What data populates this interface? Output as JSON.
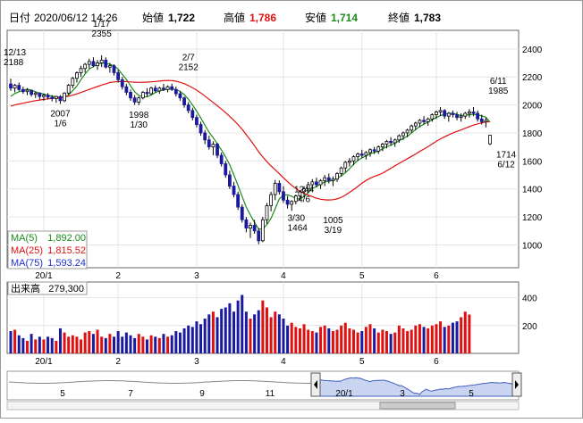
{
  "header": {
    "date_label": "日付",
    "date_value": "2020/06/12 14:26",
    "open_label": "始値",
    "open_value": "1,722",
    "high_label": "高値",
    "high_value": "1,786",
    "low_label": "安値",
    "low_value": "1,714",
    "close_label": "終値",
    "close_value": "1,783"
  },
  "colors": {
    "up": "#ffffff",
    "down": "#1a1aa0",
    "ma5": "#1a8c1a",
    "ma25": "#e01010",
    "ma75": "#2030d0",
    "vol_up": "#e01010",
    "vol_down": "#1a1aa0",
    "nav_fill": "#c8d4f0"
  },
  "chart_data": {
    "type": "candlestick",
    "price_axis": {
      "ylim": [
        850,
        2520
      ],
      "ticks": [
        1000,
        1200,
        1400,
        1600,
        1800,
        2000,
        2200,
        2400
      ]
    },
    "month_labels": [
      {
        "label": "20/1",
        "index": 8
      },
      {
        "label": "2",
        "index": 26
      },
      {
        "label": "3",
        "index": 45
      },
      {
        "label": "4",
        "index": 66
      },
      {
        "label": "5",
        "index": 85
      },
      {
        "label": "6",
        "index": 103
      }
    ],
    "key_points": [
      {
        "index": 0,
        "value": 2188
      },
      {
        "index": 22,
        "value": 2355
      },
      {
        "index": 43,
        "value": 2152
      },
      {
        "index": 12,
        "value": 2007
      },
      {
        "index": 31,
        "value": 1998
      },
      {
        "index": 67,
        "value": 1005
      },
      {
        "index": 71,
        "value": 1464
      },
      {
        "index": 78,
        "value": 1244
      },
      {
        "index": 118,
        "value": 1985
      },
      {
        "index": 121,
        "value": 1714
      }
    ],
    "annotations": [
      {
        "top": "12/13",
        "bottom": "2188"
      },
      {
        "top": "1/17",
        "bottom": "2355"
      },
      {
        "top": "2/7",
        "bottom": "2152"
      },
      {
        "top": "2007",
        "bottom": "1/6"
      },
      {
        "top": "1998",
        "bottom": "1/30"
      },
      {
        "top": "3/30",
        "bottom": "1464"
      },
      {
        "top": "1244",
        "bottom": "4/6"
      },
      {
        "top": "1005",
        "bottom": "3/19"
      },
      {
        "top": "6/11",
        "bottom": "1985"
      },
      {
        "top": "1714",
        "bottom": "6/12"
      }
    ],
    "ma_legend": [
      {
        "name": "MA(5)",
        "value": "1,892.00"
      },
      {
        "name": "MA(25)",
        "value": "1,815.52"
      },
      {
        "name": "MA(75)",
        "value": "1,593.24"
      }
    ],
    "volume": {
      "label": "出来高",
      "value": "279,300",
      "ylim": [
        0,
        500
      ],
      "ticks": [
        200,
        400
      ]
    },
    "navigator": {
      "labels": [
        "5",
        "7",
        "9",
        "11",
        "20/1",
        "3",
        "5"
      ]
    },
    "candles": [
      [
        2150,
        2188,
        2100,
        2120
      ],
      [
        2120,
        2150,
        2090,
        2140
      ],
      [
        2140,
        2160,
        2100,
        2110
      ],
      [
        2110,
        2130,
        2080,
        2095
      ],
      [
        2095,
        2120,
        2070,
        2105
      ],
      [
        2105,
        2110,
        2060,
        2075
      ],
      [
        2075,
        2095,
        2050,
        2085
      ],
      [
        2085,
        2090,
        2040,
        2060
      ],
      [
        2060,
        2080,
        2030,
        2070
      ],
      [
        2070,
        2085,
        2040,
        2055
      ],
      [
        2055,
        2070,
        2025,
        2045
      ],
      [
        2045,
        2065,
        2015,
        2060
      ],
      [
        2060,
        2070,
        2007,
        2030
      ],
      [
        2030,
        2090,
        2020,
        2085
      ],
      [
        2085,
        2150,
        2070,
        2140
      ],
      [
        2140,
        2200,
        2120,
        2190
      ],
      [
        2190,
        2240,
        2160,
        2230
      ],
      [
        2230,
        2280,
        2200,
        2260
      ],
      [
        2260,
        2300,
        2230,
        2290
      ],
      [
        2290,
        2330,
        2260,
        2310
      ],
      [
        2310,
        2340,
        2270,
        2280
      ],
      [
        2280,
        2320,
        2250,
        2300
      ],
      [
        2300,
        2355,
        2270,
        2320
      ],
      [
        2320,
        2340,
        2260,
        2270
      ],
      [
        2270,
        2300,
        2230,
        2280
      ],
      [
        2280,
        2290,
        2210,
        2230
      ],
      [
        2230,
        2250,
        2160,
        2180
      ],
      [
        2180,
        2200,
        2110,
        2130
      ],
      [
        2130,
        2150,
        2070,
        2090
      ],
      [
        2090,
        2110,
        2030,
        2050
      ],
      [
        2050,
        2070,
        2000,
        2020
      ],
      [
        2020,
        2060,
        1998,
        2050
      ],
      [
        2050,
        2100,
        2040,
        2090
      ],
      [
        2090,
        2120,
        2060,
        2080
      ],
      [
        2080,
        2130,
        2070,
        2120
      ],
      [
        2120,
        2140,
        2090,
        2100
      ],
      [
        2100,
        2130,
        2080,
        2120
      ],
      [
        2120,
        2150,
        2100,
        2110
      ],
      [
        2110,
        2140,
        2090,
        2130
      ],
      [
        2130,
        2152,
        2100,
        2110
      ],
      [
        2110,
        2130,
        2060,
        2080
      ],
      [
        2080,
        2100,
        2030,
        2050
      ],
      [
        2050,
        2060,
        1980,
        2000
      ],
      [
        2000,
        2020,
        1940,
        1960
      ],
      [
        1960,
        1980,
        1890,
        1910
      ],
      [
        1910,
        1930,
        1840,
        1860
      ],
      [
        1860,
        1880,
        1780,
        1800
      ],
      [
        1800,
        1820,
        1720,
        1750
      ],
      [
        1750,
        1780,
        1680,
        1700
      ],
      [
        1700,
        1740,
        1640,
        1720
      ],
      [
        1720,
        1730,
        1620,
        1640
      ],
      [
        1640,
        1660,
        1560,
        1580
      ],
      [
        1580,
        1600,
        1480,
        1500
      ],
      [
        1500,
        1530,
        1400,
        1420
      ],
      [
        1420,
        1450,
        1340,
        1360
      ],
      [
        1360,
        1380,
        1250,
        1270
      ],
      [
        1270,
        1290,
        1160,
        1180
      ],
      [
        1180,
        1200,
        1090,
        1120
      ],
      [
        1120,
        1160,
        1050,
        1140
      ],
      [
        1140,
        1180,
        1080,
        1100
      ],
      [
        1100,
        1120,
        1005,
        1030
      ],
      [
        1030,
        1200,
        1020,
        1180
      ],
      [
        1180,
        1300,
        1150,
        1280
      ],
      [
        1280,
        1380,
        1240,
        1360
      ],
      [
        1360,
        1464,
        1320,
        1440
      ],
      [
        1440,
        1460,
        1360,
        1380
      ],
      [
        1380,
        1420,
        1300,
        1320
      ],
      [
        1320,
        1350,
        1260,
        1290
      ],
      [
        1290,
        1320,
        1244,
        1310
      ],
      [
        1310,
        1360,
        1290,
        1350
      ],
      [
        1350,
        1390,
        1320,
        1380
      ],
      [
        1380,
        1420,
        1340,
        1400
      ],
      [
        1400,
        1450,
        1370,
        1430
      ],
      [
        1430,
        1470,
        1400,
        1450
      ],
      [
        1450,
        1480,
        1410,
        1430
      ],
      [
        1430,
        1470,
        1400,
        1460
      ],
      [
        1460,
        1500,
        1420,
        1480
      ],
      [
        1480,
        1510,
        1440,
        1460
      ],
      [
        1460,
        1490,
        1420,
        1470
      ],
      [
        1470,
        1520,
        1450,
        1510
      ],
      [
        1510,
        1560,
        1490,
        1550
      ],
      [
        1550,
        1600,
        1520,
        1590
      ],
      [
        1590,
        1620,
        1560,
        1600
      ],
      [
        1600,
        1640,
        1570,
        1630
      ],
      [
        1630,
        1660,
        1600,
        1650
      ],
      [
        1650,
        1680,
        1620,
        1640
      ],
      [
        1640,
        1670,
        1610,
        1660
      ],
      [
        1660,
        1690,
        1630,
        1680
      ],
      [
        1680,
        1700,
        1650,
        1670
      ],
      [
        1670,
        1710,
        1650,
        1700
      ],
      [
        1700,
        1730,
        1670,
        1720
      ],
      [
        1720,
        1750,
        1690,
        1740
      ],
      [
        1740,
        1770,
        1710,
        1730
      ],
      [
        1730,
        1760,
        1700,
        1750
      ],
      [
        1750,
        1790,
        1730,
        1780
      ],
      [
        1780,
        1810,
        1750,
        1800
      ],
      [
        1800,
        1830,
        1770,
        1820
      ],
      [
        1820,
        1860,
        1800,
        1850
      ],
      [
        1850,
        1880,
        1820,
        1870
      ],
      [
        1870,
        1900,
        1840,
        1890
      ],
      [
        1890,
        1920,
        1860,
        1880
      ],
      [
        1880,
        1910,
        1850,
        1900
      ],
      [
        1900,
        1940,
        1880,
        1930
      ],
      [
        1930,
        1960,
        1900,
        1950
      ],
      [
        1950,
        1985,
        1920,
        1960
      ],
      [
        1960,
        1970,
        1900,
        1920
      ],
      [
        1920,
        1950,
        1880,
        1940
      ],
      [
        1940,
        1960,
        1910,
        1930
      ],
      [
        1930,
        1950,
        1890,
        1910
      ],
      [
        1910,
        1940,
        1880,
        1920
      ],
      [
        1920,
        1950,
        1900,
        1940
      ],
      [
        1940,
        1970,
        1910,
        1950
      ],
      [
        1950,
        1985,
        1920,
        1940
      ],
      [
        1940,
        1960,
        1880,
        1900
      ],
      [
        1900,
        1930,
        1860,
        1880
      ],
      [
        1880,
        1910,
        1840,
        1890
      ],
      [
        1722,
        1786,
        1714,
        1783
      ]
    ],
    "volumes": [
      160,
      170,
      130,
      110,
      90,
      140,
      100,
      120,
      100,
      120,
      110,
      90,
      180,
      150,
      120,
      130,
      120,
      100,
      150,
      160,
      140,
      170,
      120,
      110,
      140,
      120,
      160,
      120,
      150,
      130,
      110,
      140,
      120,
      100,
      130,
      120,
      110,
      140,
      120,
      130,
      160,
      150,
      180,
      200,
      190,
      230,
      210,
      250,
      280,
      300,
      260,
      320,
      330,
      360,
      300,
      380,
      420,
      300,
      250,
      280,
      310,
      380,
      330,
      260,
      300,
      280,
      250,
      200,
      220,
      190,
      180,
      210,
      170,
      160,
      150,
      190,
      200,
      180,
      160,
      170,
      200,
      220,
      180,
      170,
      150,
      160,
      190,
      210,
      180,
      150,
      170,
      160,
      140,
      150,
      200,
      180,
      160,
      170,
      200,
      210,
      190,
      180,
      200,
      210,
      230,
      190,
      200,
      220,
      230,
      260,
      300,
      279
    ],
    "ma5": [],
    "ma25": [],
    "ma75": []
  }
}
